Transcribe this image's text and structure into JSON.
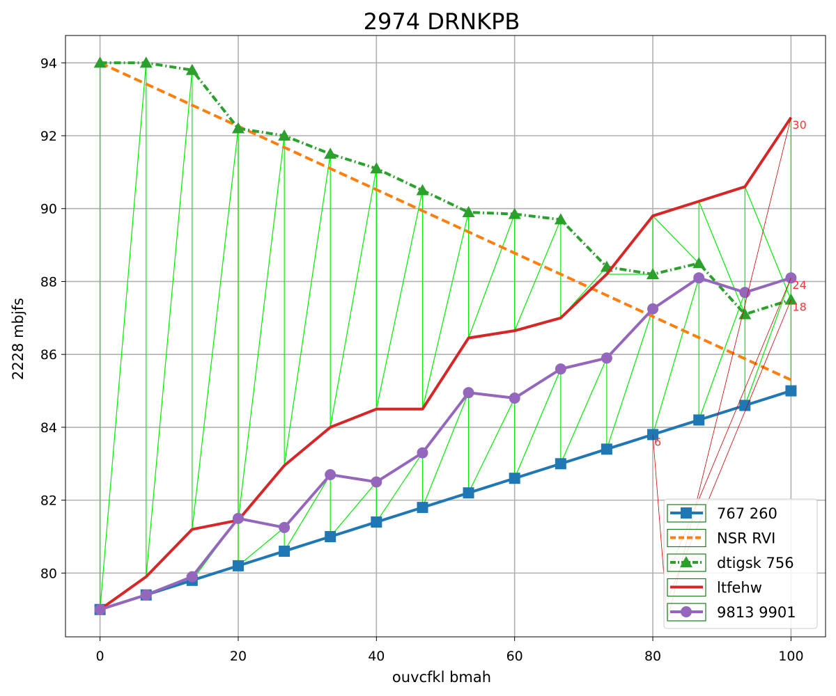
{
  "chart_data": {
    "type": "line",
    "title": "2974 DRNKPB",
    "xlabel": "ouvcfkl bmah",
    "ylabel": "2228 mbjfs",
    "xlim": [
      -5,
      105
    ],
    "ylim": [
      78.25,
      94.75
    ],
    "xticks": [
      0,
      20,
      40,
      60,
      80,
      100
    ],
    "yticks": [
      80,
      82,
      84,
      86,
      88,
      90,
      92,
      94
    ],
    "grid": true,
    "legend_position": "lower-right",
    "x": [
      0,
      6.67,
      13.33,
      20,
      26.67,
      33.33,
      40,
      46.67,
      53.33,
      60,
      66.67,
      73.33,
      80,
      86.67,
      93.33,
      100
    ],
    "series": [
      {
        "name": "767 260",
        "color": "#1f77b4",
        "style": "solid",
        "marker": "square",
        "values": [
          79.0,
          79.4,
          79.8,
          80.2,
          80.6,
          81.0,
          81.4,
          81.8,
          82.2,
          82.6,
          83.0,
          83.4,
          83.8,
          84.2,
          84.6,
          85.0
        ]
      },
      {
        "name": "NSR RVI",
        "color": "#ff7f0e",
        "style": "dashed",
        "marker": "none",
        "values": [
          94.0,
          93.42,
          92.84,
          92.26,
          91.68,
          91.1,
          90.52,
          89.94,
          89.36,
          88.78,
          88.2,
          87.62,
          87.04,
          86.46,
          85.88,
          85.3
        ]
      },
      {
        "name": "dtigsk 756",
        "color": "#2ca02c",
        "style": "dashdot",
        "marker": "triangle",
        "values": [
          94.0,
          94.0,
          93.8,
          92.2,
          92.0,
          91.5,
          91.1,
          90.5,
          89.9,
          89.85,
          89.7,
          88.4,
          88.2,
          88.5,
          87.1,
          87.5
        ]
      },
      {
        "name": "ltfehw",
        "color": "#d62728",
        "style": "solid",
        "marker": "none",
        "values": [
          79.0,
          79.9,
          81.2,
          81.45,
          82.95,
          84.0,
          84.5,
          84.5,
          86.45,
          86.65,
          87.0,
          88.2,
          89.8,
          90.2,
          90.6,
          92.5
        ]
      },
      {
        "name": "9813 9901",
        "color": "#9467bd",
        "style": "solid",
        "marker": "circle",
        "values": [
          79.0,
          79.4,
          79.9,
          81.5,
          81.25,
          82.7,
          82.5,
          83.3,
          84.95,
          84.8,
          85.6,
          85.9,
          87.25,
          88.1,
          87.7,
          88.1
        ]
      }
    ],
    "annotations": [
      {
        "text": "30",
        "x": 100,
        "y": 92.5
      },
      {
        "text": "24",
        "x": 100,
        "y": 88.1
      },
      {
        "text": "18",
        "x": 100,
        "y": 87.5
      },
      {
        "text": "6",
        "x": 80,
        "y": 83.8
      }
    ],
    "annotation_color": "#ff3333",
    "connector_color": "#00ee00",
    "red_line_color": "#cc0000"
  }
}
